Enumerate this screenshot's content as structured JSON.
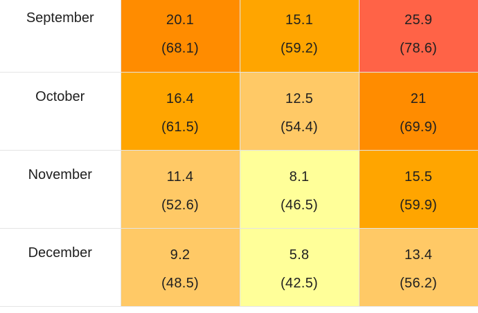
{
  "table": {
    "rows": [
      {
        "month": "September",
        "cells": [
          {
            "c": "20.1",
            "f": "(68.1)",
            "color": "#ff8c00"
          },
          {
            "c": "15.1",
            "f": "(59.2)",
            "color": "#ffa500"
          },
          {
            "c": "25.9",
            "f": "(78.6)",
            "color": "#ff6347"
          }
        ]
      },
      {
        "month": "October",
        "cells": [
          {
            "c": "16.4",
            "f": "(61.5)",
            "color": "#ffa500"
          },
          {
            "c": "12.5",
            "f": "(54.4)",
            "color": "#ffc966"
          },
          {
            "c": "21",
            "f": "(69.9)",
            "color": "#ff8c00"
          }
        ]
      },
      {
        "month": "November",
        "cells": [
          {
            "c": "11.4",
            "f": "(52.6)",
            "color": "#ffc966"
          },
          {
            "c": "8.1",
            "f": "(46.5)",
            "color": "#ffff99"
          },
          {
            "c": "15.5",
            "f": "(59.9)",
            "color": "#ffa500"
          }
        ]
      },
      {
        "month": "December",
        "cells": [
          {
            "c": "9.2",
            "f": "(48.5)",
            "color": "#ffc966"
          },
          {
            "c": "5.8",
            "f": "(42.5)",
            "color": "#ffff99"
          },
          {
            "c": "13.4",
            "f": "(56.2)",
            "color": "#ffc966"
          }
        ]
      }
    ]
  }
}
